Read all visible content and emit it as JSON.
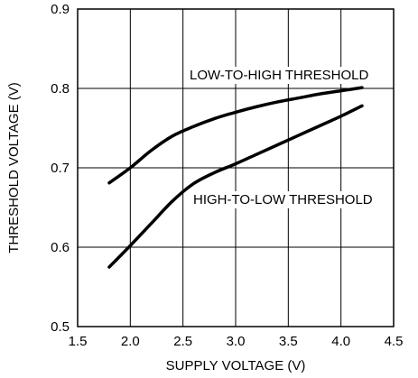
{
  "chart_data": {
    "type": "line",
    "title": "",
    "xlabel": "SUPPLY VOLTAGE (V)",
    "ylabel": "THRESHOLD VOLTAGE (V)",
    "xlim": [
      1.5,
      4.5
    ],
    "ylim": [
      0.5,
      0.9
    ],
    "xticks": [
      "1.5",
      "2.0",
      "2.5",
      "3.0",
      "3.5",
      "4.0",
      "4.5"
    ],
    "yticks": [
      "0.5",
      "0.6",
      "0.7",
      "0.8",
      "0.9"
    ],
    "grid": true,
    "line_color": "#000000",
    "series": [
      {
        "label": "LOW-TO-HIGH THRESHOLD",
        "x": [
          1.8,
          2.0,
          2.2,
          2.4,
          2.6,
          2.8,
          3.0,
          3.2,
          3.4,
          3.6,
          3.8,
          4.0,
          4.2
        ],
        "y": [
          0.681,
          0.7,
          0.722,
          0.74,
          0.752,
          0.762,
          0.77,
          0.777,
          0.783,
          0.788,
          0.793,
          0.797,
          0.801
        ]
      },
      {
        "label": "HIGH-TO-LOW THRESHOLD",
        "x": [
          1.8,
          2.0,
          2.2,
          2.4,
          2.6,
          2.8,
          3.0,
          3.2,
          3.4,
          3.6,
          3.8,
          4.0,
          4.2
        ],
        "y": [
          0.575,
          0.602,
          0.63,
          0.658,
          0.68,
          0.694,
          0.705,
          0.717,
          0.729,
          0.741,
          0.753,
          0.765,
          0.778
        ]
      }
    ]
  }
}
